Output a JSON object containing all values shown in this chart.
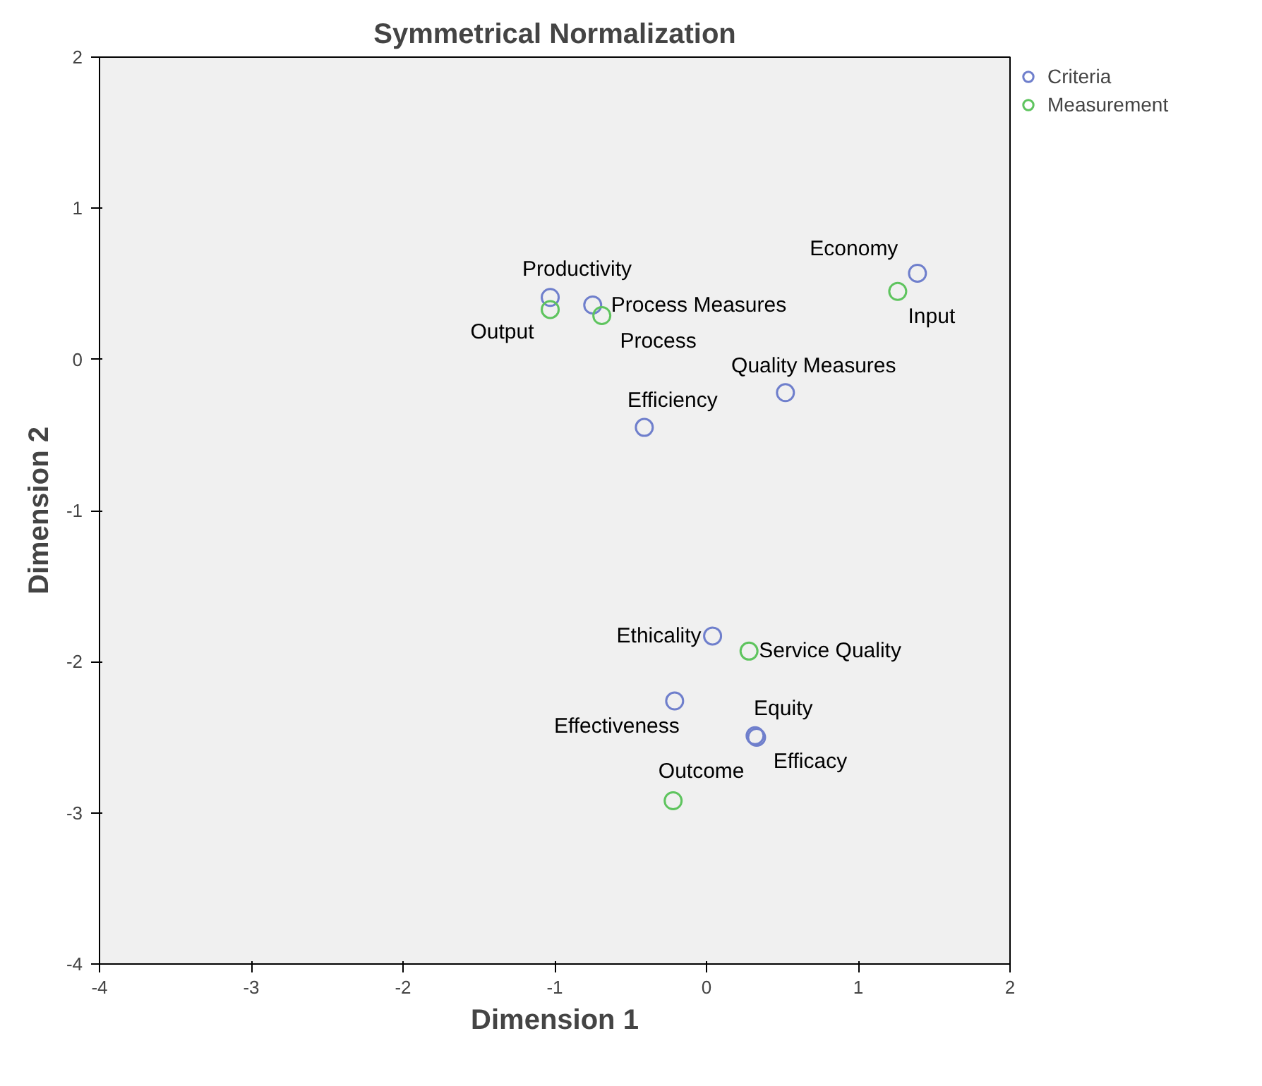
{
  "chart_data": {
    "type": "scatter",
    "title": "Symmetrical Normalization",
    "xlabel": "Dimension 1",
    "ylabel": "Dimension 2",
    "xlim": [
      -4,
      2
    ],
    "ylim": [
      -4,
      2
    ],
    "xticks": [
      -4,
      -3,
      -2,
      -1,
      0,
      1,
      2
    ],
    "yticks": [
      -4,
      -3,
      -2,
      -1,
      0,
      1,
      2
    ],
    "grid": false,
    "legend": "top right",
    "marker": "circle",
    "series": [
      {
        "name": "Criteria",
        "color": "#6f7fcc",
        "x": [
          -1.03,
          -0.75,
          1.39,
          0.52,
          -0.41,
          0.04,
          -0.21,
          0.32,
          0.33
        ],
        "values": [
          0.41,
          0.36,
          0.57,
          -0.22,
          -0.45,
          -1.83,
          -2.26,
          -2.49,
          -2.5
        ]
      },
      {
        "name": "Measurement",
        "color": "#5ec45e",
        "x": [
          -1.03,
          -0.69,
          1.26,
          0.28,
          -0.22
        ],
        "values": [
          0.33,
          0.29,
          0.45,
          -1.93,
          -2.92
        ]
      }
    ],
    "annotations": [
      {
        "text": "Productivity",
        "x": -1.03,
        "y": 0.41
      },
      {
        "text": "Process Measures",
        "x": -0.75,
        "y": 0.36
      },
      {
        "text": "Economy",
        "x": 1.39,
        "y": 0.57
      },
      {
        "text": "Quality Measures",
        "x": 0.52,
        "y": -0.22
      },
      {
        "text": "Efficiency",
        "x": -0.41,
        "y": -0.45
      },
      {
        "text": "Ethicality",
        "x": 0.04,
        "y": -1.83
      },
      {
        "text": "Effectiveness",
        "x": -0.21,
        "y": -2.26
      },
      {
        "text": "Equity",
        "x": 0.32,
        "y": -2.49
      },
      {
        "text": "Efficacy",
        "x": 0.33,
        "y": -2.5
      },
      {
        "text": "Output",
        "x": -1.03,
        "y": 0.33
      },
      {
        "text": "Process",
        "x": -0.69,
        "y": 0.29
      },
      {
        "text": "Input",
        "x": 1.26,
        "y": 0.45
      },
      {
        "text": "Service Quality",
        "x": 0.28,
        "y": -1.93
      },
      {
        "text": "Outcome",
        "x": -0.22,
        "y": -2.92
      }
    ]
  }
}
